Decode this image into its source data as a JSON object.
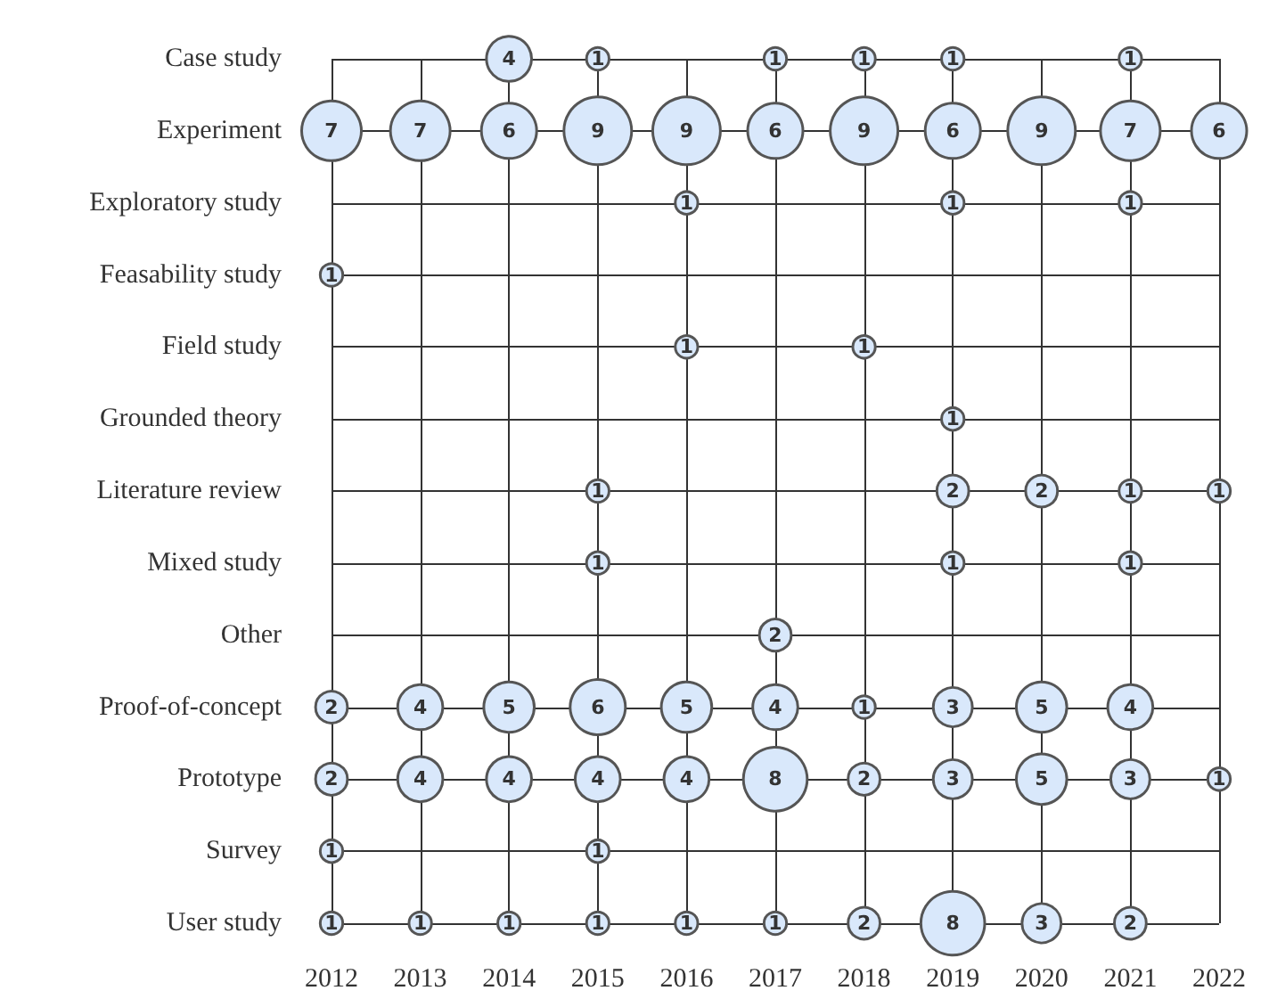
{
  "chart_data": {
    "type": "heatmap",
    "categories": [
      "2012",
      "2013",
      "2014",
      "2015",
      "2016",
      "2017",
      "2018",
      "2019",
      "2020",
      "2021",
      "2022"
    ],
    "y_categories": [
      "Case study",
      "Experiment",
      "Exploratory study",
      "Feasability study",
      "Field study",
      "Grounded theory",
      "Literature review",
      "Mixed study",
      "Other",
      "Proof-of-concept",
      "Prototype",
      "Survey",
      "User study"
    ],
    "cells": [
      [
        null,
        null,
        4,
        1,
        null,
        1,
        1,
        1,
        null,
        1,
        null
      ],
      [
        7,
        7,
        6,
        9,
        9,
        6,
        9,
        6,
        9,
        7,
        6
      ],
      [
        null,
        null,
        null,
        null,
        1,
        null,
        null,
        1,
        null,
        1,
        null
      ],
      [
        1,
        null,
        null,
        null,
        null,
        null,
        null,
        null,
        null,
        null,
        null
      ],
      [
        null,
        null,
        null,
        null,
        1,
        null,
        1,
        null,
        null,
        null,
        null
      ],
      [
        null,
        null,
        null,
        null,
        null,
        null,
        null,
        1,
        null,
        null,
        null
      ],
      [
        null,
        null,
        null,
        1,
        null,
        null,
        null,
        2,
        2,
        1,
        1
      ],
      [
        null,
        null,
        null,
        1,
        null,
        null,
        null,
        1,
        null,
        1,
        null
      ],
      [
        null,
        null,
        null,
        null,
        null,
        2,
        null,
        null,
        null,
        null,
        null
      ],
      [
        2,
        4,
        5,
        6,
        5,
        4,
        1,
        3,
        5,
        4,
        null
      ],
      [
        2,
        4,
        4,
        4,
        4,
        8,
        2,
        3,
        5,
        3,
        1
      ],
      [
        1,
        null,
        null,
        1,
        null,
        null,
        null,
        null,
        null,
        null,
        null
      ],
      [
        1,
        1,
        1,
        1,
        1,
        1,
        2,
        8,
        3,
        2,
        null
      ]
    ],
    "color": "#d9e8fb",
    "data_labels": true,
    "grid": true
  }
}
